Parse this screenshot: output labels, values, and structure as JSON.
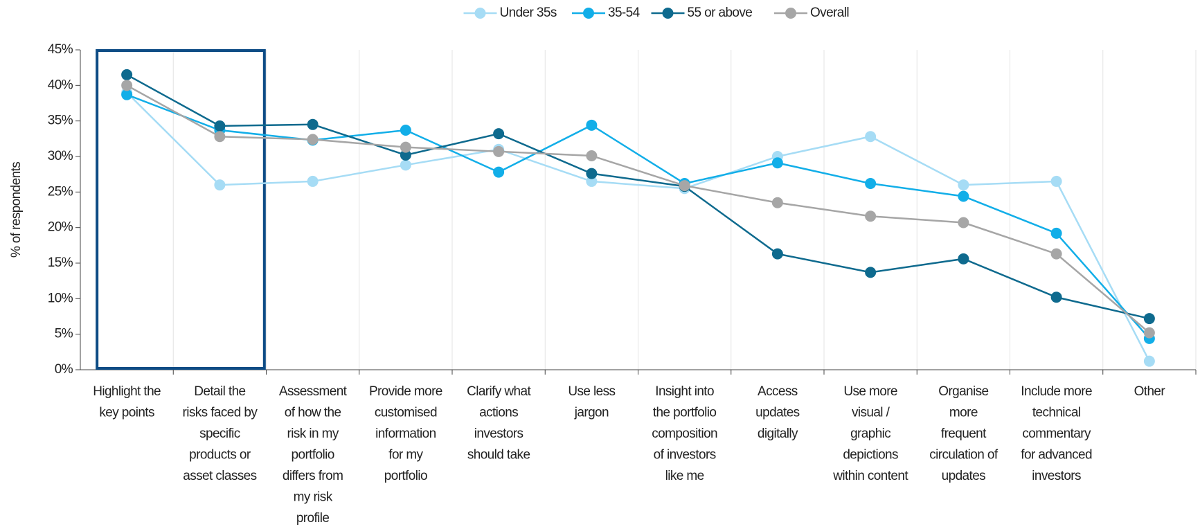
{
  "chart_data": {
    "type": "line",
    "ylabel": "% of respondents",
    "categories": [
      "Highlight the\nkey points",
      "Detail the\nrisks faced by\nspecific\nproducts or\nasset classes",
      "Assessment\nof how the\nrisk in my\nportfolio\ndiffers from\nmy risk\nprofile",
      "Provide more\ncustomised\ninformation\nfor my\nportfolio",
      "Clarify what\nactions\ninvestors\nshould take",
      "Use less\njargon",
      "Insight into\nthe portfolio\ncomposition\nof investors\nlike me",
      "Access\nupdates\ndigitally",
      "Use more\nvisual /\ngraphic\ndepictions\nwithin content",
      "Organise\nmore\nfrequent\ncirculation of\nupdates",
      "Include more\ntechnical\ncommentary\nfor advanced\ninvestors",
      "Other"
    ],
    "series": [
      {
        "name": "Under 35s",
        "color": "#a6dcf5",
        "values": [
          39.0,
          26.0,
          26.5,
          28.8,
          31.0,
          26.5,
          25.5,
          30.0,
          32.8,
          26.0,
          26.5,
          1.2
        ]
      },
      {
        "name": "35-54",
        "color": "#12aee8",
        "values": [
          38.7,
          33.7,
          32.3,
          33.7,
          27.8,
          34.4,
          26.2,
          29.1,
          26.2,
          24.4,
          19.2,
          4.4
        ]
      },
      {
        "name": "55 or above",
        "color": "#0e6a8e",
        "values": [
          41.5,
          34.3,
          34.5,
          30.2,
          33.2,
          27.6,
          25.8,
          16.3,
          13.7,
          15.6,
          10.2,
          7.2
        ]
      },
      {
        "name": "Overall",
        "color": "#a6a6a6",
        "values": [
          40.0,
          32.8,
          32.4,
          31.3,
          30.7,
          30.1,
          25.9,
          23.5,
          21.6,
          20.7,
          16.3,
          5.2
        ]
      }
    ],
    "ylim": [
      0,
      45
    ],
    "yticks": [
      {
        "value": 0,
        "label": "0%"
      },
      {
        "value": 5,
        "label": "5%"
      },
      {
        "value": 10,
        "label": "10%"
      },
      {
        "value": 15,
        "label": "15%"
      },
      {
        "value": 20,
        "label": "20%"
      },
      {
        "value": 25,
        "label": "25%"
      },
      {
        "value": 30,
        "label": "30%"
      },
      {
        "value": 35,
        "label": "35%"
      },
      {
        "value": 40,
        "label": "40%"
      },
      {
        "value": 45,
        "label": "45%"
      }
    ],
    "grid": "x",
    "legend": "top"
  }
}
